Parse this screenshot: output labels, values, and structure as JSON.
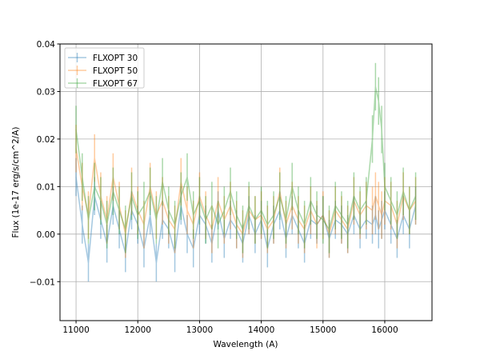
{
  "chart_data": {
    "type": "line",
    "title": "",
    "xlabel": "Wavelength (A)",
    "ylabel": "Flux (1e-17 erg/s/cm^2/A)",
    "xlim": [
      10740,
      16765
    ],
    "ylim": [
      -0.0182,
      0.04
    ],
    "xticks": [
      11000,
      12000,
      13000,
      14000,
      15000,
      16000
    ],
    "yticks": [
      -0.01,
      0.0,
      0.01,
      0.02,
      0.03,
      0.04
    ],
    "ytick_labels": [
      "−0.01",
      "0.00",
      "0.01",
      "0.02",
      "0.03",
      "0.04"
    ],
    "grid": true,
    "legend": "top-left",
    "x": [
      11000,
      11100,
      11200,
      11300,
      11400,
      11500,
      11600,
      11700,
      11800,
      11900,
      12000,
      12100,
      12200,
      12300,
      12400,
      12500,
      12600,
      12700,
      12800,
      12900,
      13000,
      13100,
      13200,
      13300,
      13400,
      13500,
      13600,
      13700,
      13800,
      13900,
      14000,
      14100,
      14200,
      14300,
      14400,
      14500,
      14600,
      14700,
      14800,
      14900,
      15000,
      15100,
      15200,
      15300,
      15400,
      15500,
      15600,
      15700,
      15800,
      15850,
      15900,
      15950,
      16000,
      16100,
      16200,
      16300,
      16400,
      16500
    ],
    "series": [
      {
        "name": "FLXOPT 30",
        "color": "#1f77b4",
        "yerr": 0.004,
        "values": [
          0.012,
          0.002,
          -0.006,
          0.008,
          0.003,
          -0.002,
          0.006,
          0.001,
          -0.004,
          0.005,
          0.002,
          -0.003,
          0.004,
          -0.006,
          0.003,
          0.001,
          -0.004,
          0.006,
          0.0,
          -0.003,
          0.004,
          0.002,
          -0.002,
          0.005,
          -0.001,
          0.003,
          0.001,
          -0.002,
          0.004,
          0.0,
          0.003,
          -0.003,
          0.002,
          0.005,
          -0.001,
          0.004,
          0.001,
          -0.002,
          0.003,
          0.002,
          0.004,
          -0.001,
          0.003,
          0.002,
          0.0,
          0.004,
          0.001,
          0.003,
          0.002,
          0.004,
          0.001,
          0.003,
          0.005,
          0.002,
          -0.001,
          0.004,
          0.001,
          0.006
        ]
      },
      {
        "name": "FLXOPT 50",
        "color": "#ff7f0e",
        "yerr": 0.005,
        "values": [
          0.018,
          0.01,
          0.004,
          0.016,
          0.008,
          0.003,
          0.012,
          0.006,
          0.0,
          0.009,
          0.005,
          0.002,
          0.01,
          0.004,
          0.007,
          0.003,
          0.001,
          0.011,
          0.005,
          0.002,
          0.008,
          0.004,
          0.001,
          0.007,
          0.003,
          0.006,
          0.002,
          0.0,
          0.005,
          0.003,
          0.004,
          0.001,
          0.003,
          0.009,
          0.002,
          0.006,
          0.003,
          0.001,
          0.005,
          0.002,
          0.004,
          0.0,
          0.005,
          0.003,
          0.001,
          0.007,
          0.004,
          0.006,
          0.005,
          0.008,
          0.006,
          0.004,
          0.007,
          0.006,
          0.002,
          0.008,
          0.005,
          0.007
        ]
      },
      {
        "name": "FLXOPT 67",
        "color": "#2ca02c",
        "yerr": 0.005,
        "values": [
          0.022,
          0.012,
          0.003,
          0.01,
          0.007,
          0.002,
          0.009,
          0.005,
          0.001,
          0.008,
          0.004,
          0.006,
          0.009,
          0.003,
          0.011,
          0.005,
          0.002,
          0.008,
          0.012,
          0.004,
          0.007,
          0.003,
          0.006,
          0.002,
          0.005,
          0.009,
          0.004,
          0.001,
          0.006,
          0.003,
          0.005,
          0.002,
          0.004,
          0.008,
          0.003,
          0.01,
          0.005,
          0.002,
          0.007,
          0.004,
          0.003,
          0.001,
          0.006,
          0.004,
          0.002,
          0.008,
          0.005,
          0.007,
          0.02,
          0.031,
          0.028,
          0.022,
          0.01,
          0.007,
          0.004,
          0.009,
          0.005,
          0.008
        ]
      }
    ]
  }
}
